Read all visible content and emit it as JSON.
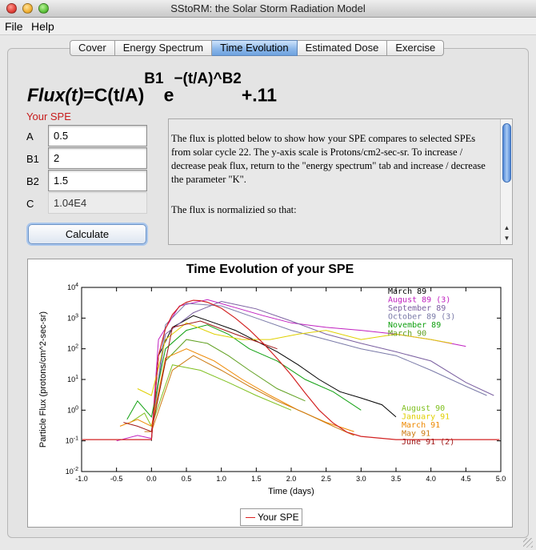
{
  "window": {
    "title": "SStoRM: the Solar Storm Radiation Model"
  },
  "menu": [
    "File",
    "Help"
  ],
  "tabs": [
    {
      "label": "Cover",
      "active": false
    },
    {
      "label": "Energy Spectrum",
      "active": false
    },
    {
      "label": "Time Evolution",
      "active": true
    },
    {
      "label": "Estimated Dose",
      "active": false
    },
    {
      "label": "Exercise",
      "active": false
    }
  ],
  "formula": {
    "lhs": "Flux(t)",
    "eq": "=C(t/A)",
    "exp1": "B1",
    "e": "e",
    "exp2": "−(t/A)^B2",
    "tail": "+.11"
  },
  "params": {
    "heading": "Your SPE",
    "A": {
      "label": "A",
      "value": "0.5"
    },
    "B1": {
      "label": "B1",
      "value": "2"
    },
    "B2": {
      "label": "B2",
      "value": "1.5"
    },
    "C": {
      "label": "C",
      "value": "1.04E4"
    }
  },
  "calculate_label": "Calculate",
  "description": {
    "p1": "The flux is plotted below to show how your SPE compares to selected SPEs from solar cycle 22. The y-axis scale is Protons/cm2-sec-sr. To increase / decrease peak flux, return to the \"energy spectrum\" tab and increase / decrease the parameter \"K\".",
    "p2": "The flux is normalizied so that:"
  },
  "chart_data": {
    "type": "line",
    "title": "Time Evolution of your SPE",
    "xlabel": "Time (days)",
    "ylabel": "Particle Flux (protons/cm^2-sec-sr)",
    "xlim": [
      -1.0,
      5.0
    ],
    "ylim": [
      0.01,
      10000
    ],
    "yscale": "log",
    "xticks": [
      "-1.0",
      "-0.5",
      "0.0",
      "0.5",
      "1.0",
      "1.5",
      "2.0",
      "2.5",
      "3.0",
      "3.5",
      "4.0",
      "4.5",
      "5.0"
    ],
    "yticks": [
      "10^-2",
      "10^-1",
      "10^0",
      "10^1",
      "10^2",
      "10^3",
      "10^4"
    ],
    "legend": "bottom-center",
    "series": [
      {
        "name": "Your SPE",
        "color": "#d22222",
        "x": [
          -0.99,
          -0.5,
          0.0,
          0.1,
          0.2,
          0.3,
          0.4,
          0.5,
          0.6,
          0.7,
          0.8,
          1.0,
          1.2,
          1.4,
          1.6,
          1.8,
          2.0,
          2.2,
          2.4,
          2.6,
          2.8,
          3.0,
          3.5,
          4.0,
          4.5,
          4.98
        ],
        "y": [
          0.11,
          0.11,
          0.11,
          60,
          450,
          1300,
          2400,
          3300,
          3800,
          3700,
          3300,
          2100,
          1000,
          420,
          150,
          48,
          14,
          3.6,
          1.0,
          0.38,
          0.19,
          0.14,
          0.11,
          0.11,
          0.11,
          0.11
        ]
      }
    ],
    "reference_events": [
      {
        "name": "March 89",
        "color": "#000000",
        "x": [
          0.0,
          0.1,
          0.3,
          0.6,
          0.9,
          1.2,
          1.5,
          1.8,
          2.1,
          2.4,
          2.7,
          3.0,
          3.3,
          3.5
        ],
        "y": [
          0.1,
          60,
          500,
          1200,
          700,
          400,
          180,
          80,
          30,
          10,
          4,
          2.5,
          1.5,
          0.6
        ]
      },
      {
        "name": "August 89 (3)",
        "color": "#c020c0",
        "x": [
          -0.5,
          -0.2,
          0.0,
          0.1,
          0.4,
          0.8,
          1.2,
          1.6,
          2.0,
          2.5,
          3.0,
          3.5,
          4.0,
          4.5
        ],
        "y": [
          0.1,
          0.15,
          0.12,
          200,
          2500,
          4000,
          2200,
          1200,
          700,
          500,
          400,
          300,
          200,
          120
        ]
      },
      {
        "name": "September 89",
        "color": "#7a5fa0",
        "x": [
          0.0,
          0.2,
          0.6,
          1.0,
          1.5,
          2.0,
          2.5,
          3.0,
          3.5,
          4.0,
          4.5,
          4.9
        ],
        "y": [
          0.2,
          300,
          1500,
          3500,
          2000,
          800,
          300,
          150,
          80,
          40,
          8,
          3
        ]
      },
      {
        "name": "October 89 (3)",
        "color": "#7a7aa8",
        "x": [
          0.0,
          0.2,
          0.5,
          1.0,
          1.5,
          2.0,
          2.5,
          3.0,
          3.5,
          4.0,
          4.5,
          4.8
        ],
        "y": [
          0.2,
          600,
          3000,
          2500,
          1000,
          400,
          200,
          100,
          60,
          20,
          6,
          3
        ]
      },
      {
        "name": "November 89",
        "color": "#10a010",
        "x": [
          -0.35,
          -0.2,
          0.0,
          0.2,
          0.5,
          0.8,
          1.1,
          1.4,
          1.8,
          2.2,
          2.6,
          3.0
        ],
        "y": [
          0.5,
          2,
          0.6,
          100,
          400,
          600,
          300,
          100,
          40,
          10,
          4,
          1
        ]
      },
      {
        "name": "March 90",
        "color": "#60a020",
        "x": [
          0.0,
          0.2,
          0.5,
          0.8,
          1.1,
          1.4,
          1.8,
          2.2
        ],
        "y": [
          0.2,
          40,
          200,
          150,
          60,
          20,
          5,
          2
        ]
      },
      {
        "name": "August 90",
        "color": "#80c020",
        "x": [
          -0.3,
          -0.1,
          0.0,
          0.3,
          0.7,
          1.1,
          1.5,
          2.0
        ],
        "y": [
          0.4,
          0.8,
          0.3,
          30,
          20,
          8,
          3,
          1
        ]
      },
      {
        "name": "January 91",
        "color": "#e0d000",
        "x": [
          -0.2,
          0.0,
          0.2,
          0.5,
          0.9,
          1.3,
          1.7,
          2.1,
          2.5,
          3.0,
          3.5,
          4.0,
          4.3
        ],
        "y": [
          5,
          3,
          200,
          700,
          300,
          200,
          200,
          300,
          400,
          200,
          300,
          200,
          150
        ]
      },
      {
        "name": "March 91",
        "color": "#ee8800",
        "x": [
          -0.45,
          -0.2,
          0.0,
          0.2,
          0.5,
          0.9,
          1.3,
          1.7,
          2.1,
          2.5,
          2.9
        ],
        "y": [
          0.3,
          0.5,
          0.3,
          50,
          100,
          40,
          10,
          3,
          1,
          0.4,
          0.2
        ]
      },
      {
        "name": "May 91",
        "color": "#cc7a10",
        "x": [
          -0.1,
          0.0,
          0.3,
          0.6,
          1.0,
          1.4,
          1.8,
          2.2,
          2.6,
          2.9
        ],
        "y": [
          0.2,
          0.2,
          20,
          60,
          20,
          6,
          2,
          0.8,
          0.3,
          0.15
        ]
      },
      {
        "name": "June 91 (2)",
        "color": "#a01818",
        "x": [
          -0.4,
          -0.2,
          0.0,
          0.3,
          0.7,
          1.2,
          1.8
        ],
        "y": [
          0.4,
          0.3,
          0.2,
          500,
          800,
          300,
          100
        ]
      }
    ]
  }
}
